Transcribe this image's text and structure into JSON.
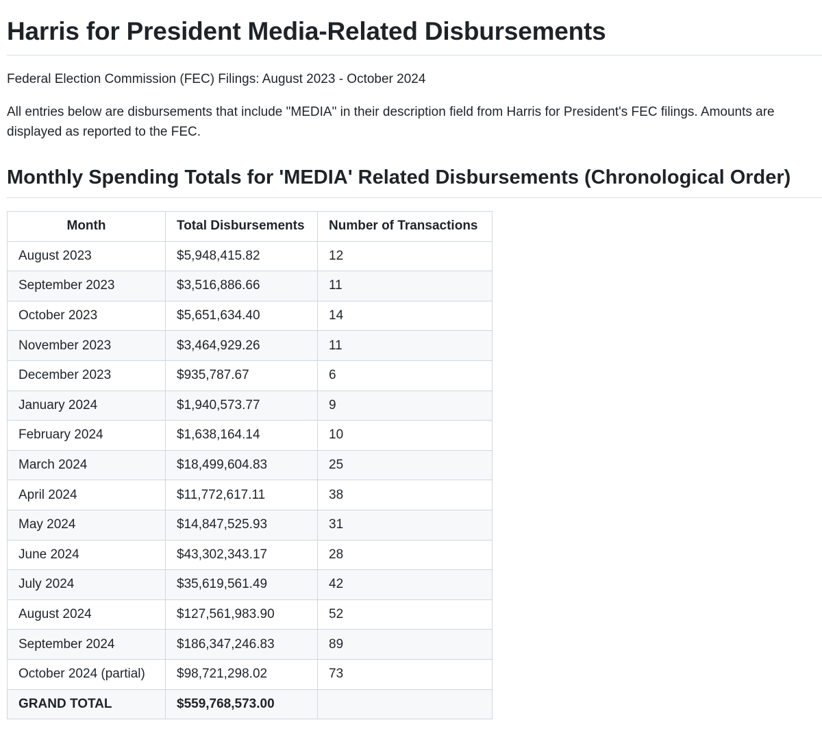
{
  "title": "Harris for President Media-Related Disbursements",
  "subtitle": "Federal Election Commission (FEC) Filings: August 2023 - October 2024",
  "description": "All entries below are disbursements that include \"MEDIA\" in their description field from Harris for President's FEC filings. Amounts are displayed as reported to the FEC.",
  "section_heading": "Monthly Spending Totals for 'MEDIA' Related Disbursements (Chronological Order)",
  "table": {
    "headers": [
      "Month",
      "Total Disbursements",
      "Number of Transactions"
    ],
    "rows": [
      [
        "August 2023",
        "$5,948,415.82",
        "12"
      ],
      [
        "September 2023",
        "$3,516,886.66",
        "11"
      ],
      [
        "October 2023",
        "$5,651,634.40",
        "14"
      ],
      [
        "November 2023",
        "$3,464,929.26",
        "11"
      ],
      [
        "December 2023",
        "$935,787.67",
        "6"
      ],
      [
        "January 2024",
        "$1,940,573.77",
        "9"
      ],
      [
        "February 2024",
        "$1,638,164.14",
        "10"
      ],
      [
        "March 2024",
        "$18,499,604.83",
        "25"
      ],
      [
        "April 2024",
        "$11,772,617.11",
        "38"
      ],
      [
        "May 2024",
        "$14,847,525.93",
        "31"
      ],
      [
        "June 2024",
        "$43,302,343.17",
        "28"
      ],
      [
        "July 2024",
        "$35,619,561.49",
        "42"
      ],
      [
        "August 2024",
        "$127,561,983.90",
        "52"
      ],
      [
        "September 2024",
        "$186,347,246.83",
        "89"
      ],
      [
        "October 2024 (partial)",
        "$98,721,298.02",
        "73"
      ]
    ],
    "total_row": [
      "GRAND TOTAL",
      "$559,768,573.00",
      ""
    ]
  }
}
